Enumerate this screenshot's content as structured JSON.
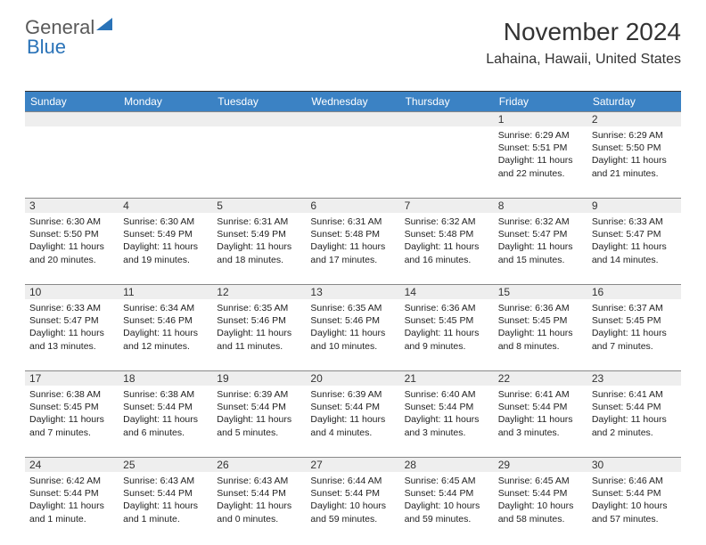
{
  "brand": {
    "part1": "General",
    "part2": "Blue"
  },
  "colors": {
    "header_bg": "#3b82c4",
    "daynum_bg": "#eeeeee",
    "border": "#888888",
    "brand_blue": "#2a73b8",
    "brand_gray": "#5a5a5a",
    "text": "#222222"
  },
  "title": "November 2024",
  "location": "Lahaina, Hawaii, United States",
  "weekdays": [
    "Sunday",
    "Monday",
    "Tuesday",
    "Wednesday",
    "Thursday",
    "Friday",
    "Saturday"
  ],
  "weeks": [
    [
      {
        "n": "",
        "sunrise": "",
        "sunset": "",
        "daylight": ""
      },
      {
        "n": "",
        "sunrise": "",
        "sunset": "",
        "daylight": ""
      },
      {
        "n": "",
        "sunrise": "",
        "sunset": "",
        "daylight": ""
      },
      {
        "n": "",
        "sunrise": "",
        "sunset": "",
        "daylight": ""
      },
      {
        "n": "",
        "sunrise": "",
        "sunset": "",
        "daylight": ""
      },
      {
        "n": "1",
        "sunrise": "Sunrise: 6:29 AM",
        "sunset": "Sunset: 5:51 PM",
        "daylight": "Daylight: 11 hours and 22 minutes."
      },
      {
        "n": "2",
        "sunrise": "Sunrise: 6:29 AM",
        "sunset": "Sunset: 5:50 PM",
        "daylight": "Daylight: 11 hours and 21 minutes."
      }
    ],
    [
      {
        "n": "3",
        "sunrise": "Sunrise: 6:30 AM",
        "sunset": "Sunset: 5:50 PM",
        "daylight": "Daylight: 11 hours and 20 minutes."
      },
      {
        "n": "4",
        "sunrise": "Sunrise: 6:30 AM",
        "sunset": "Sunset: 5:49 PM",
        "daylight": "Daylight: 11 hours and 19 minutes."
      },
      {
        "n": "5",
        "sunrise": "Sunrise: 6:31 AM",
        "sunset": "Sunset: 5:49 PM",
        "daylight": "Daylight: 11 hours and 18 minutes."
      },
      {
        "n": "6",
        "sunrise": "Sunrise: 6:31 AM",
        "sunset": "Sunset: 5:48 PM",
        "daylight": "Daylight: 11 hours and 17 minutes."
      },
      {
        "n": "7",
        "sunrise": "Sunrise: 6:32 AM",
        "sunset": "Sunset: 5:48 PM",
        "daylight": "Daylight: 11 hours and 16 minutes."
      },
      {
        "n": "8",
        "sunrise": "Sunrise: 6:32 AM",
        "sunset": "Sunset: 5:47 PM",
        "daylight": "Daylight: 11 hours and 15 minutes."
      },
      {
        "n": "9",
        "sunrise": "Sunrise: 6:33 AM",
        "sunset": "Sunset: 5:47 PM",
        "daylight": "Daylight: 11 hours and 14 minutes."
      }
    ],
    [
      {
        "n": "10",
        "sunrise": "Sunrise: 6:33 AM",
        "sunset": "Sunset: 5:47 PM",
        "daylight": "Daylight: 11 hours and 13 minutes."
      },
      {
        "n": "11",
        "sunrise": "Sunrise: 6:34 AM",
        "sunset": "Sunset: 5:46 PM",
        "daylight": "Daylight: 11 hours and 12 minutes."
      },
      {
        "n": "12",
        "sunrise": "Sunrise: 6:35 AM",
        "sunset": "Sunset: 5:46 PM",
        "daylight": "Daylight: 11 hours and 11 minutes."
      },
      {
        "n": "13",
        "sunrise": "Sunrise: 6:35 AM",
        "sunset": "Sunset: 5:46 PM",
        "daylight": "Daylight: 11 hours and 10 minutes."
      },
      {
        "n": "14",
        "sunrise": "Sunrise: 6:36 AM",
        "sunset": "Sunset: 5:45 PM",
        "daylight": "Daylight: 11 hours and 9 minutes."
      },
      {
        "n": "15",
        "sunrise": "Sunrise: 6:36 AM",
        "sunset": "Sunset: 5:45 PM",
        "daylight": "Daylight: 11 hours and 8 minutes."
      },
      {
        "n": "16",
        "sunrise": "Sunrise: 6:37 AM",
        "sunset": "Sunset: 5:45 PM",
        "daylight": "Daylight: 11 hours and 7 minutes."
      }
    ],
    [
      {
        "n": "17",
        "sunrise": "Sunrise: 6:38 AM",
        "sunset": "Sunset: 5:45 PM",
        "daylight": "Daylight: 11 hours and 7 minutes."
      },
      {
        "n": "18",
        "sunrise": "Sunrise: 6:38 AM",
        "sunset": "Sunset: 5:44 PM",
        "daylight": "Daylight: 11 hours and 6 minutes."
      },
      {
        "n": "19",
        "sunrise": "Sunrise: 6:39 AM",
        "sunset": "Sunset: 5:44 PM",
        "daylight": "Daylight: 11 hours and 5 minutes."
      },
      {
        "n": "20",
        "sunrise": "Sunrise: 6:39 AM",
        "sunset": "Sunset: 5:44 PM",
        "daylight": "Daylight: 11 hours and 4 minutes."
      },
      {
        "n": "21",
        "sunrise": "Sunrise: 6:40 AM",
        "sunset": "Sunset: 5:44 PM",
        "daylight": "Daylight: 11 hours and 3 minutes."
      },
      {
        "n": "22",
        "sunrise": "Sunrise: 6:41 AM",
        "sunset": "Sunset: 5:44 PM",
        "daylight": "Daylight: 11 hours and 3 minutes."
      },
      {
        "n": "23",
        "sunrise": "Sunrise: 6:41 AM",
        "sunset": "Sunset: 5:44 PM",
        "daylight": "Daylight: 11 hours and 2 minutes."
      }
    ],
    [
      {
        "n": "24",
        "sunrise": "Sunrise: 6:42 AM",
        "sunset": "Sunset: 5:44 PM",
        "daylight": "Daylight: 11 hours and 1 minute."
      },
      {
        "n": "25",
        "sunrise": "Sunrise: 6:43 AM",
        "sunset": "Sunset: 5:44 PM",
        "daylight": "Daylight: 11 hours and 1 minute."
      },
      {
        "n": "26",
        "sunrise": "Sunrise: 6:43 AM",
        "sunset": "Sunset: 5:44 PM",
        "daylight": "Daylight: 11 hours and 0 minutes."
      },
      {
        "n": "27",
        "sunrise": "Sunrise: 6:44 AM",
        "sunset": "Sunset: 5:44 PM",
        "daylight": "Daylight: 10 hours and 59 minutes."
      },
      {
        "n": "28",
        "sunrise": "Sunrise: 6:45 AM",
        "sunset": "Sunset: 5:44 PM",
        "daylight": "Daylight: 10 hours and 59 minutes."
      },
      {
        "n": "29",
        "sunrise": "Sunrise: 6:45 AM",
        "sunset": "Sunset: 5:44 PM",
        "daylight": "Daylight: 10 hours and 58 minutes."
      },
      {
        "n": "30",
        "sunrise": "Sunrise: 6:46 AM",
        "sunset": "Sunset: 5:44 PM",
        "daylight": "Daylight: 10 hours and 57 minutes."
      }
    ]
  ]
}
